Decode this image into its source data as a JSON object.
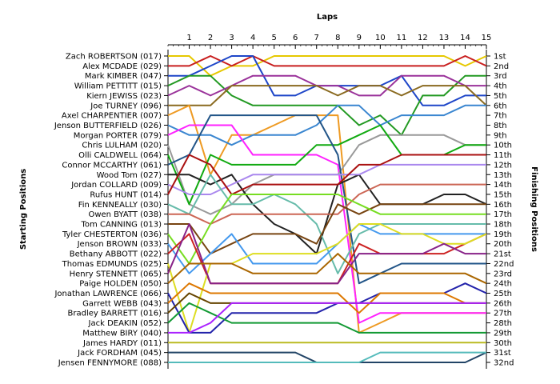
{
  "chart_data": {
    "type": "line",
    "title": "",
    "x_axis_title": "Laps",
    "left_axis_title": "Starting Positions",
    "right_axis_title": "Finishing Positions",
    "x": [
      1,
      2,
      3,
      4,
      5,
      6,
      7,
      8,
      9,
      10,
      11,
      12,
      13,
      14,
      15
    ],
    "xlim": [
      0,
      15
    ],
    "ylim": [
      1,
      32
    ],
    "y_reversed": true,
    "grid": false,
    "legend": "none",
    "starting_labels": [
      "Zach ROBERTSON (017)",
      "Alex MCDADE (029)",
      "Mark KIMBER (047)",
      "William PETTITT (015)",
      "Kiern JEWISS (023)",
      "Joe TURNEY (096)",
      "Axel CHARPENTIER (007)",
      "Jenson BUTTERFIELD (026)",
      "Morgan PORTER (079)",
      "Chris LULHAM (020)",
      "Olli CALDWELL (064)",
      "Connor MCCARTHY (061)",
      "Wood Tom (027)",
      "Jordan COLLARD (009)",
      "Rufus HUNT (014)",
      "Fin KENNEALLY (030)",
      "Owen BYATT (038)",
      "Tom CANNING (013)",
      "Tyler CHESTERTON (036)",
      "Jenson BROWN (033)",
      "Bethany ABBOTT (022)",
      "Thomas EDMUNDS (025)",
      "Henry STENNETT (065)",
      "Paige HOLDEN (050)",
      "Jonathan LAWRENCE (066)",
      "Garrett WEBB (043)",
      "Bradley BARRETT (016)",
      "Jack DEAKIN (052)",
      "Matthew BIRY (040)",
      "James HARDY (011)",
      "Jack FORDHAM (045)",
      "Jensen FENNYMORE (088)"
    ],
    "finishing_labels": [
      "1st",
      "2nd",
      "3rd",
      "4th",
      "5th",
      "6th",
      "7th",
      "8th",
      "9th",
      "10th",
      "11th",
      "12th",
      "13th",
      "14th",
      "15th",
      "16th",
      "17th",
      "18th",
      "19th",
      "20th",
      "21st",
      "22nd",
      "23rd",
      "24th",
      "25th",
      "26th",
      "27th",
      "28th",
      "29th",
      "30th",
      "31st",
      "32nd"
    ],
    "series": [
      {
        "color": "#e6c800",
        "positions": [
          1,
          3,
          2,
          2,
          1,
          1,
          1,
          1,
          1,
          1,
          1,
          1,
          1,
          2,
          1
        ]
      },
      {
        "color": "#c81e1e",
        "positions": [
          2,
          1,
          2,
          1,
          2,
          2,
          2,
          2,
          2,
          2,
          2,
          2,
          2,
          1,
          2
        ]
      },
      {
        "color": "#1e46c8",
        "positions": [
          3,
          2,
          1,
          1,
          5,
          5,
          4,
          4,
          4,
          4,
          3,
          6,
          6,
          5,
          5
        ]
      },
      {
        "color": "#229922",
        "positions": [
          3,
          3,
          5,
          6,
          6,
          6,
          6,
          6,
          8,
          7,
          9,
          5,
          5,
          3,
          3
        ]
      },
      {
        "color": "#9a329a",
        "positions": [
          4,
          5,
          4,
          3,
          3,
          3,
          4,
          4,
          5,
          5,
          3,
          3,
          3,
          4,
          4
        ]
      },
      {
        "color": "#8a6a20",
        "positions": [
          6,
          6,
          4,
          4,
          4,
          4,
          4,
          5,
          4,
          4,
          5,
          4,
          4,
          4,
          6
        ]
      },
      {
        "color": "#ee9a22",
        "positions": [
          6,
          13,
          9,
          9,
          8,
          7,
          7,
          7,
          29,
          28,
          27,
          27,
          27,
          27,
          27
        ]
      },
      {
        "color": "#3a86d0",
        "positions": [
          9,
          9,
          10,
          9,
          9,
          9,
          8,
          6,
          6,
          8,
          7,
          7,
          7,
          6,
          6
        ]
      },
      {
        "color": "#ff22ff",
        "positions": [
          8,
          8,
          8,
          11,
          11,
          11,
          11,
          12,
          28,
          27,
          27,
          27,
          27,
          27,
          27
        ]
      },
      {
        "color": "#999999",
        "positions": [
          16,
          17,
          16,
          14,
          13,
          13,
          13,
          13,
          10,
          9,
          9,
          9,
          9,
          10,
          10
        ]
      },
      {
        "color": "#11aa11",
        "positions": [
          16,
          11,
          12,
          12,
          12,
          12,
          10,
          10,
          9,
          8,
          11,
          11,
          11,
          10,
          10
        ]
      },
      {
        "color": "#225588",
        "positions": [
          11,
          7,
          7,
          7,
          7,
          7,
          7,
          11,
          24,
          23,
          22,
          22,
          22,
          22,
          22
        ]
      },
      {
        "color": "#222222",
        "positions": [
          13,
          14,
          13,
          16,
          18,
          19,
          21,
          14,
          13,
          16,
          16,
          16,
          15,
          15,
          16
        ]
      },
      {
        "color": "#aa88ee",
        "positions": [
          15,
          15,
          14,
          13,
          13,
          13,
          13,
          13,
          13,
          12,
          12,
          12,
          12,
          12,
          12
        ]
      },
      {
        "color": "#aa1111",
        "positions": [
          11,
          12,
          15,
          14,
          14,
          14,
          14,
          14,
          12,
          12,
          11,
          11,
          11,
          11,
          11
        ]
      },
      {
        "color": "#66bbaa",
        "positions": [
          17,
          13,
          16,
          16,
          15,
          16,
          18,
          23,
          19,
          18,
          18,
          18,
          18,
          18,
          18
        ]
      },
      {
        "color": "#cc6655",
        "positions": [
          17,
          18,
          17,
          17,
          17,
          17,
          17,
          17,
          15,
          14,
          14,
          14,
          14,
          14,
          14
        ]
      },
      {
        "color": "#774411",
        "positions": [
          18,
          21,
          20,
          19,
          19,
          19,
          20,
          16,
          17,
          16,
          16,
          16,
          16,
          16,
          16
        ]
      },
      {
        "color": "#77dd22",
        "positions": [
          22,
          18,
          15,
          15,
          15,
          15,
          15,
          15,
          16,
          17,
          17,
          17,
          17,
          17,
          17
        ]
      },
      {
        "color": "#4499ee",
        "positions": [
          23,
          21,
          19,
          22,
          22,
          22,
          22,
          20,
          18,
          19,
          19,
          19,
          19,
          19,
          19
        ]
      },
      {
        "color": "#cc2222",
        "positions": [
          19,
          24,
          24,
          24,
          24,
          24,
          24,
          24,
          20,
          21,
          21,
          21,
          21,
          20,
          19
        ]
      },
      {
        "color": "#dddd22",
        "positions": [
          29,
          22,
          22,
          21,
          21,
          21,
          21,
          20,
          18,
          18,
          19,
          19,
          20,
          20,
          19
        ]
      },
      {
        "color": "#882288",
        "positions": [
          18,
          24,
          24,
          24,
          24,
          24,
          24,
          24,
          21,
          21,
          21,
          21,
          20,
          21,
          21
        ]
      },
      {
        "color": "#aa6600",
        "positions": [
          22,
          22,
          22,
          23,
          23,
          23,
          23,
          21,
          23,
          23,
          23,
          23,
          23,
          23,
          24
        ]
      },
      {
        "color": "#2222aa",
        "positions": [
          29,
          29,
          27,
          27,
          27,
          27,
          27,
          26,
          26,
          25,
          25,
          25,
          25,
          24,
          25
        ]
      },
      {
        "color": "#dd7700",
        "positions": [
          24,
          25,
          25,
          25,
          25,
          25,
          25,
          25,
          27,
          25,
          25,
          25,
          25,
          26,
          26
        ]
      },
      {
        "color": "#664400",
        "positions": [
          25,
          26,
          26,
          26,
          26,
          26,
          26,
          26,
          26,
          26,
          26,
          26,
          26,
          26,
          26
        ]
      },
      {
        "color": "#119933",
        "positions": [
          26,
          27,
          28,
          28,
          28,
          28,
          28,
          28,
          29,
          29,
          29,
          29,
          29,
          29,
          29
        ]
      },
      {
        "color": "#aa22ff",
        "positions": [
          29,
          28,
          26,
          26,
          26,
          26,
          26,
          26,
          26,
          26,
          26,
          26,
          26,
          26,
          26
        ]
      },
      {
        "color": "#bbbb22",
        "positions": [
          30,
          30,
          30,
          30,
          30,
          30,
          30,
          30,
          30,
          30,
          30,
          30,
          30,
          30,
          30
        ]
      },
      {
        "color": "#224466",
        "positions": [
          31,
          31,
          31,
          31,
          31,
          31,
          32,
          32,
          32,
          32,
          32,
          32,
          32,
          32,
          31
        ]
      },
      {
        "color": "#55bbbb",
        "positions": [
          32,
          32,
          32,
          32,
          32,
          32,
          32,
          32,
          32,
          31,
          31,
          31,
          31,
          31,
          31
        ]
      }
    ]
  }
}
